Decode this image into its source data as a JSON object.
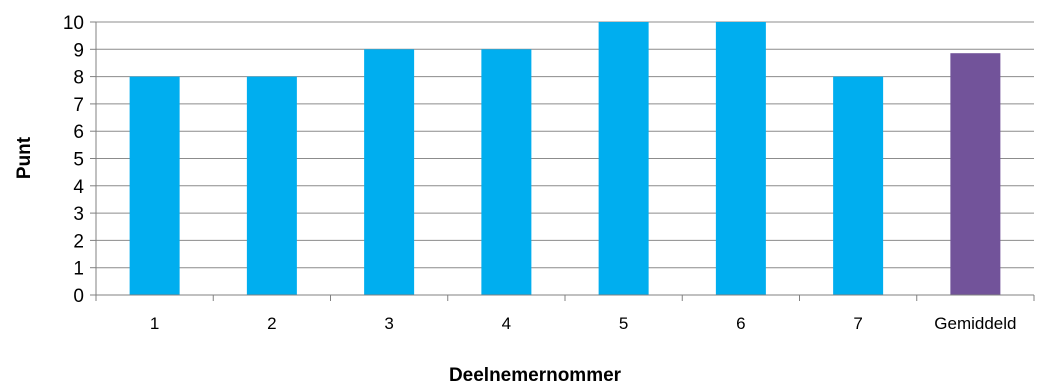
{
  "chart_data": {
    "type": "bar",
    "title": "",
    "xlabel": "Deelnemernommer",
    "ylabel": "Punt",
    "categories": [
      "1",
      "2",
      "3",
      "4",
      "5",
      "6",
      "7",
      "Gemiddeld"
    ],
    "values": [
      8,
      8,
      9,
      9,
      10,
      10,
      8,
      8.857
    ],
    "bar_colors": [
      "#00aeef",
      "#00aeef",
      "#00aeef",
      "#00aeef",
      "#00aeef",
      "#00aeef",
      "#00aeef",
      "#72539a"
    ],
    "ylim": [
      0,
      10
    ],
    "yticks": [
      "0",
      "1",
      "2",
      "3",
      "4",
      "5",
      "6",
      "7",
      "8",
      "9",
      "10"
    ],
    "grid": true,
    "legend": "none"
  }
}
